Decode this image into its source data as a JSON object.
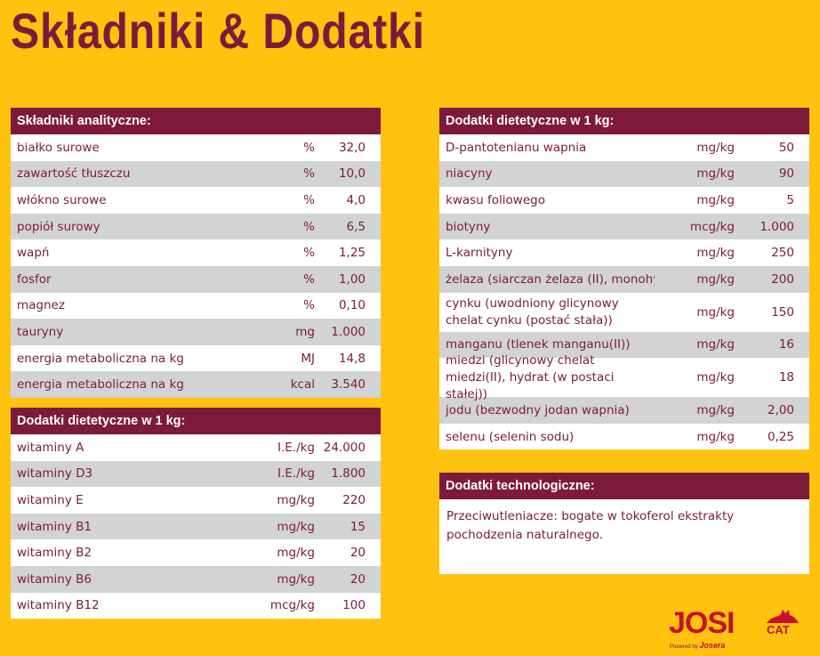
{
  "title": "Składniki & Dodatki",
  "analytical": {
    "heading": "Składniki analityczne:",
    "rows": [
      {
        "name": "białko surowe",
        "unit": "%",
        "value": "32,0"
      },
      {
        "name": "zawartość tłuszczu",
        "unit": "%",
        "value": "10,0"
      },
      {
        "name": "włókno surowe",
        "unit": "%",
        "value": "4,0"
      },
      {
        "name": "popiół surowy",
        "unit": "%",
        "value": "6,5"
      },
      {
        "name": "wapń",
        "unit": "%",
        "value": "1,25"
      },
      {
        "name": "fosfor",
        "unit": "%",
        "value": "1,00"
      },
      {
        "name": "magnez",
        "unit": "%",
        "value": "0,10"
      },
      {
        "name": "tauryny",
        "unit": "mg",
        "value": "1.000"
      },
      {
        "name": "energia metaboliczna na kg",
        "unit": "MJ",
        "value": "14,8"
      },
      {
        "name": "energia metaboliczna na kg",
        "unit": "kcal",
        "value": "3.540"
      }
    ]
  },
  "vitamins": {
    "heading": "Dodatki dietetyczne w 1 kg:",
    "rows": [
      {
        "name": "witaminy A",
        "unit": "I.E./kg",
        "value": "24.000"
      },
      {
        "name": "witaminy D3",
        "unit": "I.E./kg",
        "value": "1.800"
      },
      {
        "name": "witaminy E",
        "unit": "mg/kg",
        "value": "220"
      },
      {
        "name": "witaminy B1",
        "unit": "mg/kg",
        "value": "15"
      },
      {
        "name": "witaminy B2",
        "unit": "mg/kg",
        "value": "20"
      },
      {
        "name": "witaminy B6",
        "unit": "mg/kg",
        "value": "20"
      },
      {
        "name": "witaminy B12",
        "unit": "mcg/kg",
        "value": "100"
      }
    ]
  },
  "dietary": {
    "heading": "Dodatki dietetyczne w 1 kg:",
    "rows": [
      {
        "name": "D-pantotenianu wapnia",
        "unit": "mg/kg",
        "value": "50"
      },
      {
        "name": "niacyny",
        "unit": "mg/kg",
        "value": "90"
      },
      {
        "name": "kwasu foliowego",
        "unit": "mg/kg",
        "value": "5"
      },
      {
        "name": "biotyny",
        "unit": "mcg/kg",
        "value": "1.000"
      },
      {
        "name": "L-karnityny",
        "unit": "mg/kg",
        "value": "250"
      },
      {
        "name": "żelaza (siarczan żelaza (II), monohydrat)",
        "unit": "mg/kg",
        "value": "200"
      },
      {
        "name": "cynku (uwodniony glicynowy chelat cynku (postać stała))",
        "unit": "mg/kg",
        "value": "150"
      },
      {
        "name": "manganu (tlenek manganu(II))",
        "unit": "mg/kg",
        "value": "16"
      },
      {
        "name": "miedzi (glicynowy chelat miedzi(II), hydrat (w postaci stałej))",
        "unit": "mg/kg",
        "value": "18"
      },
      {
        "name": "jodu (bezwodny jodan wapnia)",
        "unit": "mg/kg",
        "value": "2,00"
      },
      {
        "name": "selenu (selenin sodu)",
        "unit": "mg/kg",
        "value": "0,25"
      }
    ]
  },
  "technological": {
    "heading": "Dodatki technologiczne:",
    "text": "Przeciwutleniacze: bogate w tokoferol ekstrakty pochodzenia naturalnego."
  },
  "logo": {
    "brand": "JOSI",
    "sub": "CAT",
    "powered_by": "Powered by",
    "maker": "Josera"
  },
  "colors": {
    "background": "#ffc20e",
    "accent": "#7d1a3c",
    "row_alt": "#d2d3d5",
    "logo_red": "#c8102e"
  }
}
